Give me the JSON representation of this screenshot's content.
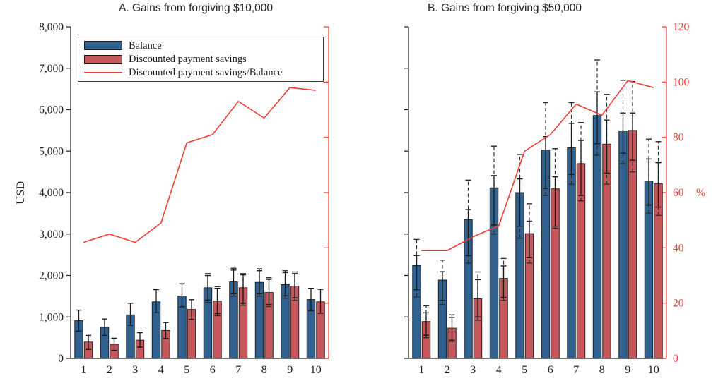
{
  "colors": {
    "balance_bar": "#30618f",
    "savings_bar": "#c4585c",
    "bar_edge": "#1a1a1a",
    "ratio_line": "#f43b36",
    "right_axis": "#f43b36",
    "error_solid": "#1b1b1b",
    "error_dashed": "#2e2e2e",
    "axis": "#1e1e1e",
    "text": "#1e1e1e"
  },
  "legend": {
    "items": [
      {
        "label": "Balance",
        "swatch": "balance-bar"
      },
      {
        "label": "Discounted payment savings",
        "swatch": "savings-bar"
      },
      {
        "label": "Discounted payment savings/Balance",
        "swatch": "ratio-line"
      }
    ]
  },
  "left_axis": {
    "label": "USD",
    "ticks": [
      "0",
      "1,000",
      "2,000",
      "3,000",
      "4,000",
      "5,000",
      "6,000",
      "7,000",
      "8,000"
    ],
    "min": 0,
    "max": 8000
  },
  "right_axis": {
    "ticks": [
      "0",
      "20",
      "40",
      "60",
      "80",
      "100",
      "120"
    ],
    "unit": "%",
    "min": 0,
    "max": 120
  },
  "chart_data": [
    {
      "type": "bar",
      "panel": "A",
      "title": "A. Gains from forgiving $10,000",
      "categories": [
        "1",
        "2",
        "3",
        "4",
        "5",
        "6",
        "7",
        "8",
        "9",
        "10"
      ],
      "ylabel": "USD",
      "ylim": [
        0,
        8000
      ],
      "y2lim": [
        0,
        120
      ],
      "show_left_labels": true,
      "show_right_labels": false,
      "series": [
        {
          "name": "Balance",
          "type": "bar",
          "color_key": "balance_bar",
          "values": [
            910,
            750,
            1050,
            1365,
            1505,
            1705,
            1845,
            1835,
            1780,
            1420
          ],
          "ci_solid": [
            [
              655,
              1165
            ],
            [
              555,
              950
            ],
            [
              800,
              1330
            ],
            [
              1100,
              1660
            ],
            [
              1245,
              1800
            ],
            [
              1405,
              2000
            ],
            [
              1560,
              2130
            ],
            [
              1560,
              2115
            ],
            [
              1510,
              2070
            ],
            [
              1150,
              1690
            ]
          ],
          "ci_dashed": [
            null,
            null,
            null,
            null,
            null,
            [
              1350,
              2045
            ],
            [
              1500,
              2175
            ],
            [
              1500,
              2160
            ],
            [
              1450,
              2115
            ],
            null
          ]
        },
        {
          "name": "Discounted payment savings",
          "type": "bar",
          "color_key": "savings_bar",
          "values": [
            395,
            340,
            440,
            675,
            1180,
            1385,
            1705,
            1590,
            1745,
            1365
          ],
          "ci_solid": [
            [
              215,
              555
            ],
            [
              195,
              485
            ],
            [
              270,
              620
            ],
            [
              480,
              865
            ],
            [
              940,
              1415
            ],
            [
              1080,
              1690
            ],
            [
              1330,
              2015
            ],
            [
              1300,
              1905
            ],
            [
              1460,
              2045
            ],
            [
              1090,
              1665
            ]
          ],
          "ci_dashed": [
            null,
            null,
            null,
            null,
            null,
            [
              1030,
              1730
            ],
            [
              1280,
              2045
            ],
            [
              1250,
              1945
            ],
            [
              1400,
              2085
            ],
            null
          ]
        },
        {
          "name": "Discounted payment savings/Balance",
          "type": "line",
          "axis": "right",
          "values": [
            42,
            45,
            42,
            49,
            78,
            81,
            93,
            87,
            98,
            97
          ]
        }
      ]
    },
    {
      "type": "bar",
      "panel": "B",
      "title": "B. Gains from forgiving $50,000",
      "categories": [
        "1",
        "2",
        "3",
        "4",
        "5",
        "6",
        "7",
        "8",
        "9",
        "10"
      ],
      "ylabel": "USD",
      "ylim": [
        0,
        8000
      ],
      "y2lim": [
        0,
        120
      ],
      "show_left_labels": false,
      "show_right_labels": true,
      "series": [
        {
          "name": "Balance",
          "type": "bar",
          "color_key": "balance_bar",
          "values": [
            2240,
            1890,
            3350,
            4115,
            4000,
            5030,
            5080,
            5860,
            5490,
            4280
          ],
          "ci_solid": [
            [
              1660,
              2480
            ],
            [
              1400,
              2090
            ],
            [
              2480,
              3590
            ],
            [
              3220,
              4410
            ],
            [
              3190,
              4330
            ],
            [
              4100,
              5350
            ],
            [
              4440,
              5670
            ],
            [
              5180,
              6430
            ],
            [
              4950,
              5920
            ],
            [
              3700,
              4810
            ]
          ],
          "ci_dashed": [
            [
              1480,
              2870
            ],
            [
              1300,
              2370
            ],
            [
              2300,
              4300
            ],
            [
              3000,
              5120
            ],
            [
              2900,
              4920
            ],
            [
              3930,
              6170
            ],
            [
              4200,
              6170
            ],
            [
              4900,
              7200
            ],
            [
              4700,
              6710
            ],
            [
              3500,
              5290
            ]
          ]
        },
        {
          "name": "Discounted payment savings",
          "type": "bar",
          "color_key": "savings_bar",
          "values": [
            890,
            730,
            1440,
            1930,
            3010,
            4090,
            4700,
            5170,
            5500,
            4210
          ],
          "ci_solid": [
            [
              560,
              1100
            ],
            [
              440,
              990
            ],
            [
              1000,
              1900
            ],
            [
              1470,
              2230
            ],
            [
              2430,
              3310
            ],
            [
              3190,
              4380
            ],
            [
              3930,
              5260
            ],
            [
              4470,
              5750
            ],
            [
              4780,
              5920
            ],
            [
              3650,
              4720
            ]
          ],
          "ci_dashed": [
            [
              500,
              1270
            ],
            [
              410,
              1050
            ],
            [
              920,
              2085
            ],
            [
              1400,
              2410
            ],
            [
              2300,
              3730
            ],
            [
              3140,
              5060
            ],
            [
              3800,
              5690
            ],
            [
              4200,
              6370
            ],
            [
              4500,
              6680
            ],
            [
              3450,
              5230
            ]
          ]
        },
        {
          "name": "Discounted payment savings/Balance",
          "type": "line",
          "axis": "right",
          "values": [
            39,
            39,
            44,
            48,
            75,
            81,
            92,
            88,
            100.5,
            98
          ]
        }
      ]
    }
  ]
}
